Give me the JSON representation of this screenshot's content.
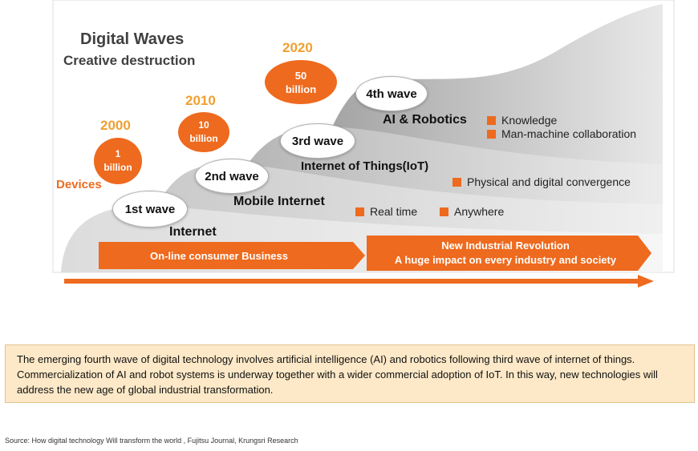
{
  "title": "Digital Waves",
  "subtitle": "Creative destruction",
  "devices_label": "Devices",
  "milestones": [
    {
      "year": "2000",
      "count_line1": "1",
      "count_line2": "billion"
    },
    {
      "year": "2010",
      "count_line1": "10",
      "count_line2": "billion"
    },
    {
      "year": "2020",
      "count_line1": "50",
      "count_line2": "billion"
    }
  ],
  "waves": [
    {
      "label": "1st wave",
      "name": "Internet"
    },
    {
      "label": "2nd wave",
      "name": "Mobile Internet"
    },
    {
      "label": "3rd wave",
      "name": "Internet of Things(IoT)"
    },
    {
      "label": "4th wave",
      "name": "AI & Robotics"
    }
  ],
  "features": {
    "mobile": [
      "Real time",
      "Anywhere"
    ],
    "iot": [
      "Physical and digital convergence"
    ],
    "ai": [
      "Knowledge",
      "Man-machine collaboration"
    ]
  },
  "arrows": {
    "left": "On-line consumer Business",
    "right_line1": "New Industrial Revolution",
    "right_line2": "A huge impact on every industry and society"
  },
  "caption": "The emerging fourth wave of digital technology involves artificial intelligence (AI) and robotics following third wave of internet of things. Commercialization of AI and robot systems is underway together with a wider commercial adoption of IoT. In this way, new technologies will address the new age of global industrial transformation.",
  "source": "Source: How digital technology Will transform the world , Fujitsu Journal, Krungsri Research",
  "colors": {
    "accent": "#ee6a1e",
    "year": "#f0a030",
    "caption_bg": "#fde9c8"
  }
}
